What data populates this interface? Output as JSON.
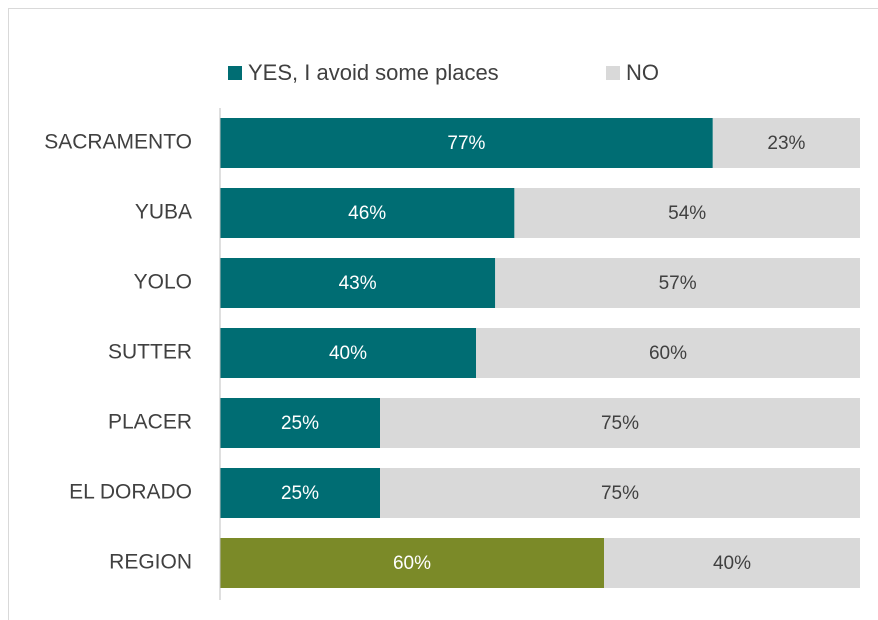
{
  "chart_data": {
    "type": "stacked-bar-horizontal",
    "categories": [
      "SACRAMENTO",
      "YUBA",
      "YOLO",
      "SUTTER",
      "PLACER",
      "EL DORADO",
      "REGION"
    ],
    "series": [
      {
        "name": "YES, I avoid some places",
        "color": "#006d73",
        "colors": [
          "#006d73",
          "#006d73",
          "#006d73",
          "#006d73",
          "#006d73",
          "#006d73",
          "#7b8a28"
        ],
        "label_color": "#ffffff",
        "values": [
          77,
          46,
          43,
          40,
          25,
          25,
          60
        ],
        "value_labels": [
          "77%",
          "46%",
          "43%",
          "40%",
          "25%",
          "25%",
          "60%"
        ]
      },
      {
        "name": "NO",
        "color": "#d9d9d9",
        "label_color": "#404040",
        "values": [
          23,
          54,
          57,
          60,
          75,
          75,
          40
        ],
        "value_labels": [
          "23%",
          "54%",
          "57%",
          "60%",
          "75%",
          "75%",
          "40%"
        ]
      }
    ],
    "xlim": [
      0,
      100
    ]
  }
}
